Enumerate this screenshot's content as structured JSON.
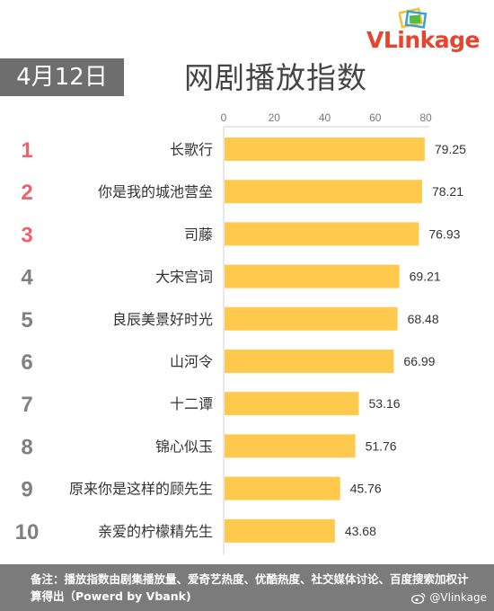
{
  "logo": {
    "prefix": "VLink",
    "suffix": "age",
    "mark_icon": "logo-frames-icon"
  },
  "header": {
    "date": "4月12日",
    "title": "网剧播放指数"
  },
  "chart_data": {
    "type": "bar",
    "orientation": "horizontal",
    "title": "网剧播放指数",
    "xlim": [
      0,
      80
    ],
    "x_ticks": [
      0,
      20,
      40,
      60,
      80
    ],
    "grid": false,
    "bar_color": "#ffc94d",
    "ranks": [
      "1",
      "2",
      "3",
      "4",
      "5",
      "6",
      "7",
      "8",
      "9",
      "10"
    ],
    "rank_colors": [
      "#f0606e",
      "#f0606e",
      "#f0606e",
      "#808080",
      "#808080",
      "#808080",
      "#808080",
      "#808080",
      "#808080",
      "#808080"
    ],
    "categories": [
      "长歌行",
      "你是我的城池营垒",
      "司藤",
      "大宋宫词",
      "良辰美景好时光",
      "山河令",
      "十二谭",
      "锦心似玉",
      "原来你是这样的顾先生",
      "亲爱的柠檬精先生"
    ],
    "values": [
      79.25,
      78.21,
      76.93,
      69.21,
      68.48,
      66.99,
      53.16,
      51.76,
      45.76,
      43.68
    ],
    "value_labels": [
      "79.25",
      "78.21",
      "76.93",
      "69.21",
      "68.48",
      "66.99",
      "53.16",
      "51.76",
      "45.76",
      "43.68"
    ]
  },
  "footer": {
    "note": "备注：播放指数由剧集播放量、爱奇艺热度、优酷热度、社交媒体讨论、百度搜索加权计算得出（Powerd by Vbank)",
    "watermark": "@Vlinkage",
    "watermark_icon": "weibo-icon"
  },
  "colors": {
    "badge": "#6e6e6e",
    "footer": "#7b7b7b",
    "brand": "#e8432f"
  }
}
